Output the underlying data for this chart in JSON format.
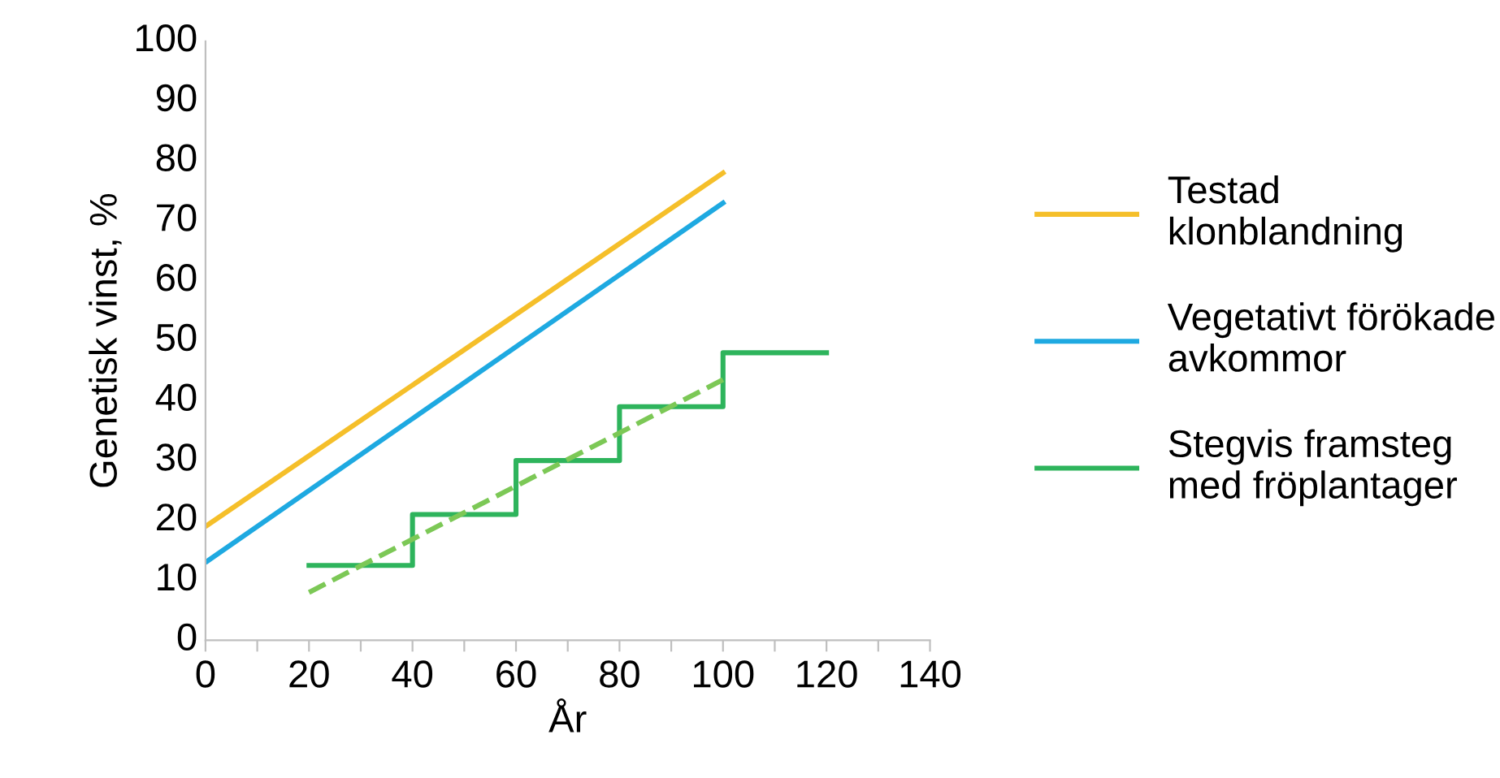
{
  "chart_data": {
    "type": "line",
    "xlabel": "År",
    "ylabel": "Genetisk vinst, %",
    "xlim": [
      0,
      140
    ],
    "xticks": [
      0,
      {
        "value": 10,
        "label": null
      },
      20,
      {
        "value": 30,
        "label": null
      },
      40,
      {
        "value": 50,
        "label": null
      },
      60,
      {
        "value": 70,
        "label": null
      },
      80,
      {
        "value": 90,
        "label": null
      },
      100,
      {
        "value": 110,
        "label": null
      },
      120,
      {
        "value": 130,
        "label": null
      },
      140
    ],
    "ylim": [
      0,
      100
    ],
    "yticks": [
      0,
      10,
      20,
      30,
      40,
      50,
      60,
      70,
      80,
      90,
      100
    ],
    "grid": false,
    "legend": "right",
    "line_style": "solid",
    "marker": "none",
    "series": [
      {
        "name": "Testad\nklonblandning",
        "color": "#f5bf2a",
        "x": [
          0,
          100
        ],
        "values": [
          19,
          78
        ]
      },
      {
        "name": "Vegetativt förökade\navkommor",
        "color": "#1ea9e1",
        "x": [
          0,
          100
        ],
        "values": [
          13,
          73
        ]
      },
      {
        "name": "Stegvis framsteg\nmed fröplantager",
        "type": "step",
        "color": "#2eb45c",
        "x": [
          20,
          40,
          60,
          80,
          100,
          120
        ],
        "values": [
          12.5,
          21,
          30,
          39,
          48,
          48
        ]
      },
      {
        "type": "line",
        "line_style": "dashed",
        "color": "#7cc856",
        "x": [
          20,
          100
        ],
        "values": [
          8,
          43.5
        ]
      }
    ]
  }
}
